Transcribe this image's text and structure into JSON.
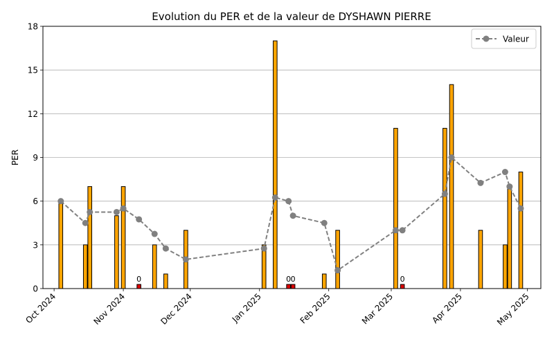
{
  "chart_data": {
    "type": "bar",
    "title": "Evolution du PER et de la valeur de DYSHAWN PIERRE",
    "xlabel": "",
    "ylabel": "PER",
    "ylim": [
      0,
      18
    ],
    "yticks": [
      0,
      3,
      6,
      9,
      12,
      15,
      18
    ],
    "xlim": [
      "2024-09-26",
      "2025-05-07"
    ],
    "xticks": [
      {
        "date": "2024-10-01",
        "label": "Oct 2024"
      },
      {
        "date": "2024-11-01",
        "label": "Nov 2024"
      },
      {
        "date": "2024-12-01",
        "label": "Dec 2024"
      },
      {
        "date": "2025-01-01",
        "label": "Jan 2025"
      },
      {
        "date": "2025-02-01",
        "label": "Feb 2025"
      },
      {
        "date": "2025-03-01",
        "label": "Mar 2025"
      },
      {
        "date": "2025-04-01",
        "label": "Apr 2025"
      },
      {
        "date": "2025-05-01",
        "label": "May 2025"
      }
    ],
    "grid": "y",
    "bar_color": "#FFA500",
    "zero_bar_color": "#DD0000",
    "line_color": "#808080",
    "legend_position": "top-right",
    "series": [
      {
        "kind": "bar",
        "points": [
          {
            "date": "2024-10-04",
            "value": 6
          },
          {
            "date": "2024-10-15",
            "value": 3
          },
          {
            "date": "2024-10-17",
            "value": 7
          },
          {
            "date": "2024-10-29",
            "value": 5
          },
          {
            "date": "2024-11-01",
            "value": 7
          },
          {
            "date": "2024-11-08",
            "value": 0,
            "label": "0"
          },
          {
            "date": "2024-11-15",
            "value": 3
          },
          {
            "date": "2024-11-20",
            "value": 1
          },
          {
            "date": "2024-11-29",
            "value": 4
          },
          {
            "date": "2025-01-03",
            "value": 3
          },
          {
            "date": "2025-01-08",
            "value": 17
          },
          {
            "date": "2025-01-14",
            "value": 0,
            "label": "0"
          },
          {
            "date": "2025-01-16",
            "value": 0,
            "label": "0"
          },
          {
            "date": "2025-01-30",
            "value": 1
          },
          {
            "date": "2025-02-05",
            "value": 4
          },
          {
            "date": "2025-03-03",
            "value": 11
          },
          {
            "date": "2025-03-06",
            "value": 0,
            "label": "0"
          },
          {
            "date": "2025-03-25",
            "value": 11
          },
          {
            "date": "2025-03-28",
            "value": 14
          },
          {
            "date": "2025-04-10",
            "value": 4
          },
          {
            "date": "2025-04-21",
            "value": 3
          },
          {
            "date": "2025-04-23",
            "value": 7
          },
          {
            "date": "2025-04-28",
            "value": 8
          }
        ]
      },
      {
        "kind": "line",
        "name": "Valeur",
        "points": [
          {
            "date": "2024-10-04",
            "value": 6.0
          },
          {
            "date": "2024-10-15",
            "value": 4.5
          },
          {
            "date": "2024-10-17",
            "value": 5.25
          },
          {
            "date": "2024-10-29",
            "value": 5.25
          },
          {
            "date": "2024-11-01",
            "value": 5.5
          },
          {
            "date": "2024-11-08",
            "value": 4.75
          },
          {
            "date": "2024-11-15",
            "value": 3.75
          },
          {
            "date": "2024-11-20",
            "value": 2.75
          },
          {
            "date": "2024-11-29",
            "value": 2.0
          },
          {
            "date": "2025-01-03",
            "value": 2.75
          },
          {
            "date": "2025-01-08",
            "value": 6.25
          },
          {
            "date": "2025-01-14",
            "value": 6.0
          },
          {
            "date": "2025-01-16",
            "value": 5.0
          },
          {
            "date": "2025-01-30",
            "value": 4.5
          },
          {
            "date": "2025-02-05",
            "value": 1.25
          },
          {
            "date": "2025-03-03",
            "value": 4.0
          },
          {
            "date": "2025-03-06",
            "value": 4.0
          },
          {
            "date": "2025-03-25",
            "value": 6.5
          },
          {
            "date": "2025-03-28",
            "value": 9.0
          },
          {
            "date": "2025-04-10",
            "value": 7.25
          },
          {
            "date": "2025-04-21",
            "value": 8.0
          },
          {
            "date": "2025-04-23",
            "value": 7.0
          },
          {
            "date": "2025-04-28",
            "value": 5.5
          }
        ]
      }
    ]
  }
}
